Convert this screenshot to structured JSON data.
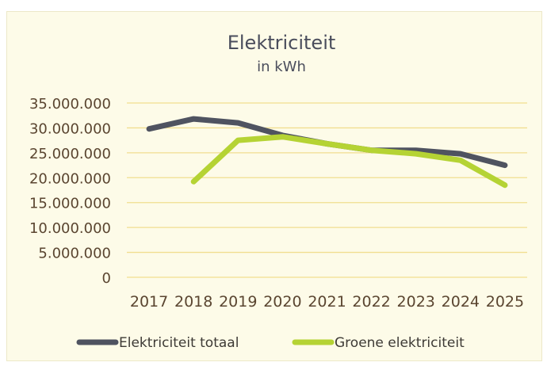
{
  "chart_data": {
    "type": "line",
    "title": "Elektriciteit",
    "subtitle": "in kWh",
    "xlabel": "",
    "ylabel": "",
    "categories": [
      "2017",
      "2018",
      "2019",
      "2020",
      "2021",
      "2022",
      "2023",
      "2024",
      "2025"
    ],
    "ylim": [
      0,
      35000000
    ],
    "yticks": [
      0,
      5000000,
      10000000,
      15000000,
      20000000,
      25000000,
      30000000,
      35000000
    ],
    "ytick_labels": [
      "0",
      "5.000.000",
      "10.000.000",
      "15.000.000",
      "20.000.000",
      "25.000.000",
      "30.000.000",
      "35.000.000"
    ],
    "grid": true,
    "legend_position": "bottom",
    "series": [
      {
        "name": "Elektriciteit totaal",
        "color": "#4f5360",
        "values": [
          29800000,
          31800000,
          31000000,
          28500000,
          26800000,
          25500000,
          25500000,
          24800000,
          22500000
        ]
      },
      {
        "name": "Groene elektriciteit",
        "color": "#b5d334",
        "values": [
          null,
          19200000,
          27500000,
          28200000,
          26800000,
          25500000,
          24800000,
          23500000,
          18500000
        ]
      }
    ],
    "colors": {
      "background": "#fdfbe8",
      "gridline": "#f1de8f",
      "tick_text": "#5a4530"
    }
  }
}
